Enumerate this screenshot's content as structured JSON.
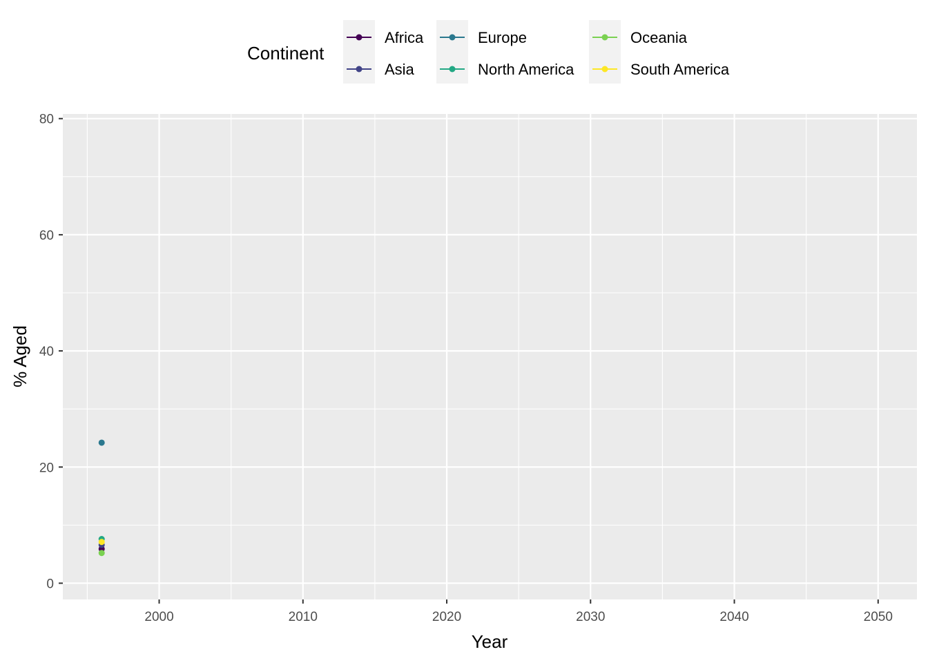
{
  "chart_data": {
    "type": "line",
    "title": "",
    "xlabel": "Year",
    "ylabel": "% Aged",
    "xlim": [
      1993.3,
      2052.7
    ],
    "ylim": [
      -2.8,
      80.8
    ],
    "x_ticks": [
      2000,
      2010,
      2020,
      2030,
      2040,
      2050
    ],
    "x_tick_labels": [
      "2000",
      "2010",
      "2020",
      "2030",
      "2040",
      "2050"
    ],
    "y_ticks": [
      0,
      20,
      40,
      60,
      80
    ],
    "y_tick_labels": [
      "0",
      "20",
      "40",
      "60",
      "80"
    ],
    "grid": true,
    "legend": {
      "title": "Continent",
      "position": "top",
      "columns": [
        [
          "Africa",
          "Asia"
        ],
        [
          "Europe",
          "North America"
        ],
        [
          "Oceania",
          "South America"
        ]
      ]
    },
    "series": [
      {
        "name": "Africa",
        "color": "#440154",
        "x": [
          1996
        ],
        "y": [
          5.9
        ]
      },
      {
        "name": "Asia",
        "color": "#414487",
        "x": [
          1996
        ],
        "y": [
          6.6
        ]
      },
      {
        "name": "Europe",
        "color": "#2a788e",
        "x": [
          1996
        ],
        "y": [
          24.2
        ]
      },
      {
        "name": "North America",
        "color": "#22a884",
        "x": [
          1996
        ],
        "y": [
          7.6
        ]
      },
      {
        "name": "Oceania",
        "color": "#7ad151",
        "x": [
          1996
        ],
        "y": [
          5.2
        ]
      },
      {
        "name": "South America",
        "color": "#fde725",
        "x": [
          1996
        ],
        "y": [
          7.1
        ]
      }
    ]
  }
}
